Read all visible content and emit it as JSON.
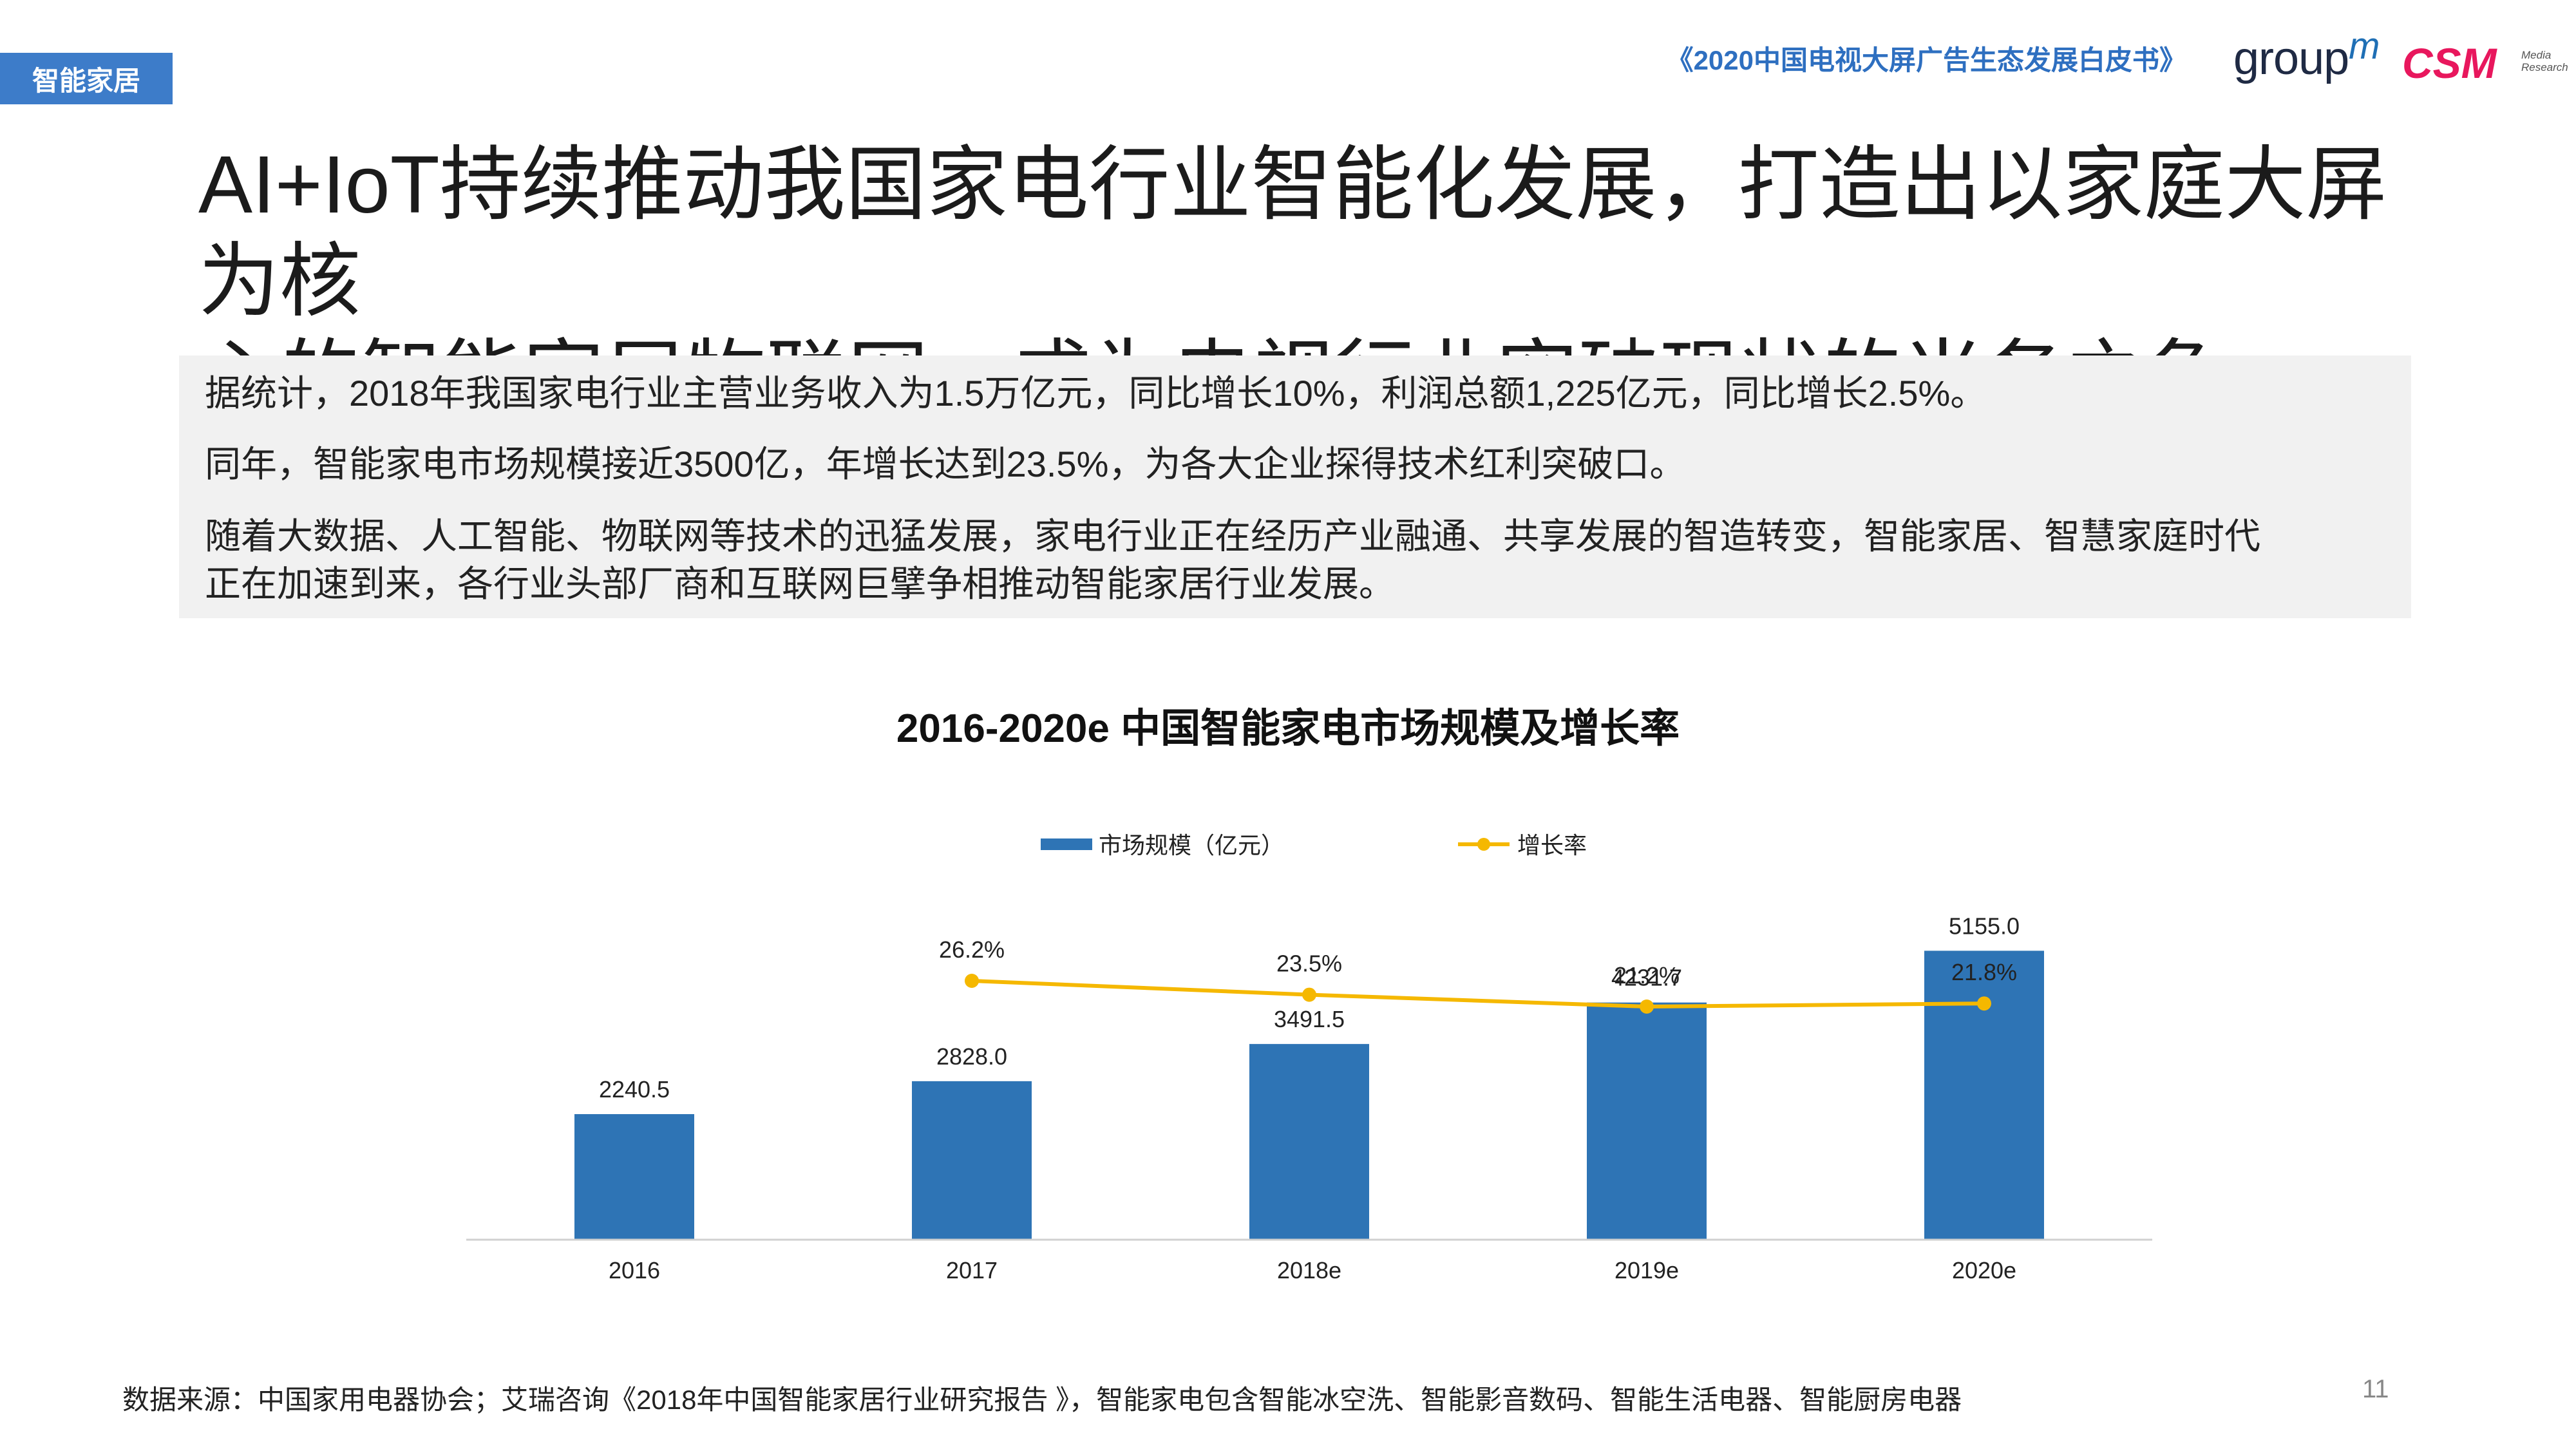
{
  "slide": {
    "section_tag": "智能家居",
    "header_title": "《2020中国电视大屏广告生态发展白皮书》",
    "logo_groupm_text": "group",
    "logo_groupm_m": "m",
    "logo_csm": "CSM",
    "logo_csm_sub_1": "Media",
    "logo_csm_sub_2": "Research",
    "headline_line1": "AI+IoT持续推动我国家电行业智能化发展，打造出以家庭大屏为核",
    "headline_line2": "心的智能家居物联网，成为电视行业突破现状的当务之急",
    "info": {
      "line1": "据统计，2018年我国家电行业主营业务收入为1.5万亿元，同比增长10%，利润总额1,225亿元，同比增长2.5%。",
      "line2": "同年，智能家电市场规模接近3500亿，年增长达到23.5%，为各大企业探得技术红利突破口。",
      "line3a": "随着大数据、人工智能、物联网等技术的迅猛发展，家电行业正在经历产业融通、共享发展的智造转变，智能家居、智慧家庭时代",
      "line3b": "正在加速到来，各行业头部厂商和互联网巨擘争相推动智能家居行业发展。"
    },
    "source": "数据来源：中国家用电器协会；艾瑞咨询《2018年中国智能家居行业研究报告 》，智能家电包含智能冰空洗、智能影音数码、智能生活电器、智能厨房电器",
    "page_number": "11"
  },
  "chart_data": {
    "type": "bar",
    "title": "2016-2020e 中国智能家电市场规模及增长率",
    "categories": [
      "2016",
      "2017",
      "2018e",
      "2019e",
      "2020e"
    ],
    "series": [
      {
        "name": "市场规模（亿元）",
        "type": "bar",
        "values": [
          2240.5,
          2828.0,
          3491.5,
          4231.7,
          5155.0
        ],
        "labels": [
          "2240.5",
          "2828.0",
          "3491.5",
          "4231.7",
          "5155.0"
        ],
        "color": "#2e74b5"
      },
      {
        "name": "增长率",
        "type": "line",
        "values": [
          null,
          26.2,
          23.5,
          21.2,
          21.8
        ],
        "labels": [
          "",
          "26.2%",
          "23.5%",
          "21.2%",
          "21.8%"
        ],
        "color": "#f5b800"
      }
    ],
    "legend_position": "top",
    "grid": false
  }
}
